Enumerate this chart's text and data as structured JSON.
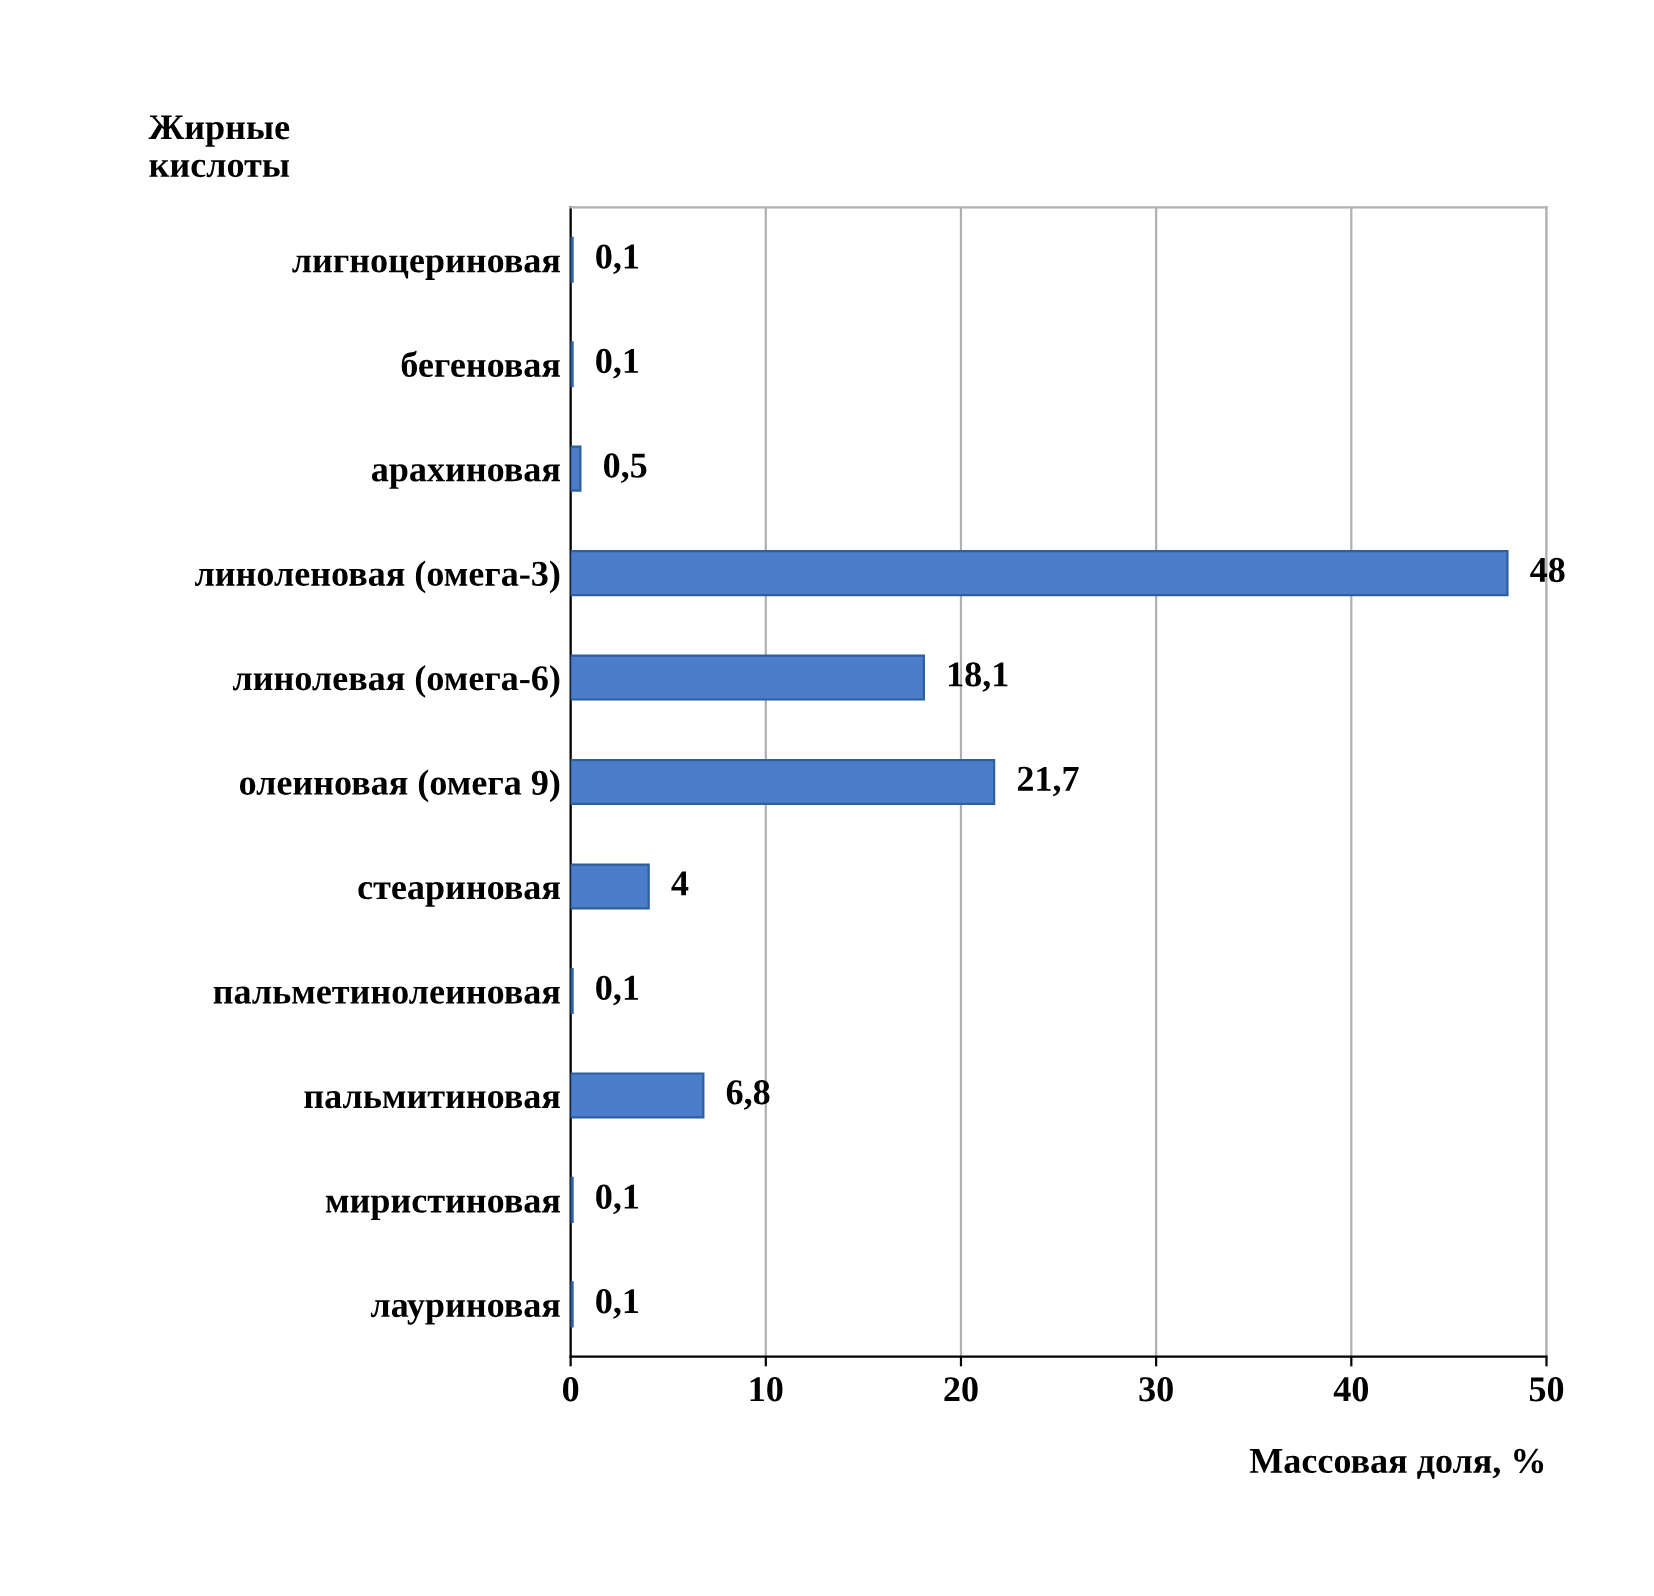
{
  "chart_data": {
    "type": "bar",
    "orientation": "horizontal",
    "ylabel": "Жирные\nкислоты",
    "xlabel": "Массовая доля, %",
    "categories": [
      "лигноцериновая",
      "бегеновая",
      "арахиновая",
      "линоленовая (омега-3)",
      "линолевая (омега-6)",
      "олеиновая (омега 9)",
      "стеариновая",
      "пальметинолеиновая",
      "пальмитиновая",
      "миристиновая",
      "лауриновая"
    ],
    "values": [
      0.1,
      0.1,
      0.5,
      48,
      18.1,
      21.7,
      4,
      0.1,
      6.8,
      0.1,
      0.1
    ],
    "value_labels": [
      "0,1",
      "0,1",
      "0,5",
      "48",
      "18,1",
      "21,7",
      "4",
      "0,1",
      "6,8",
      "0,1",
      "0,1"
    ],
    "color": "#4a7ecb",
    "xlim": [
      0,
      50
    ],
    "xticks": [
      0,
      10,
      20,
      30,
      40,
      50
    ],
    "grid": "x"
  }
}
